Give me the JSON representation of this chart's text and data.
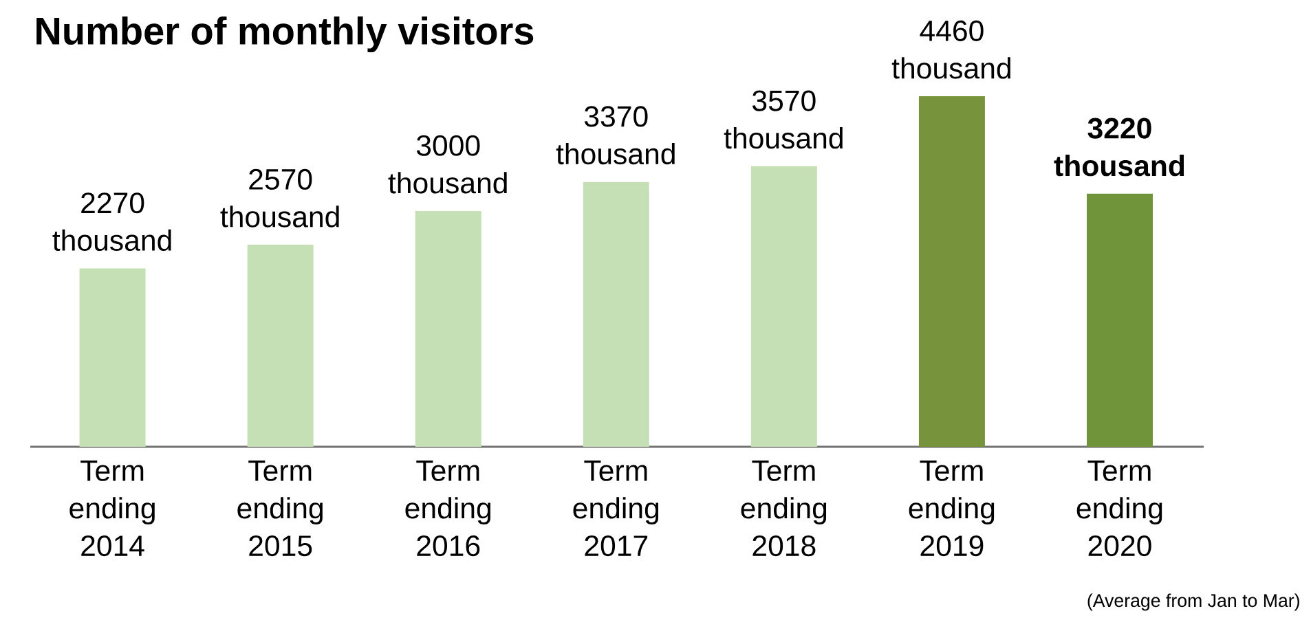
{
  "chart_data": {
    "type": "bar",
    "title": "Number of monthly visitors",
    "categories": [
      "Term ending 2014",
      "Term ending 2015",
      "Term ending 2016",
      "Term ending 2017",
      "Term ending 2018",
      "Term ending 2019",
      "Term ending 2020"
    ],
    "values": [
      2270,
      2570,
      3000,
      3370,
      3570,
      4460,
      3220
    ],
    "value_labels": [
      "2270 thousand",
      "2570 thousand",
      "3000 thousand",
      "3370 thousand",
      "3570 thousand",
      "4460 thousand",
      "**3220 thousand**"
    ],
    "colors": [
      "#c5e0b4",
      "#c5e0b4",
      "#c5e0b4",
      "#c5e0b4",
      "#c5e0b4",
      "#77933c",
      "#70943a"
    ],
    "tick_labels": "x",
    "annotations": [
      "(Average from Jan to Mar)"
    ]
  }
}
